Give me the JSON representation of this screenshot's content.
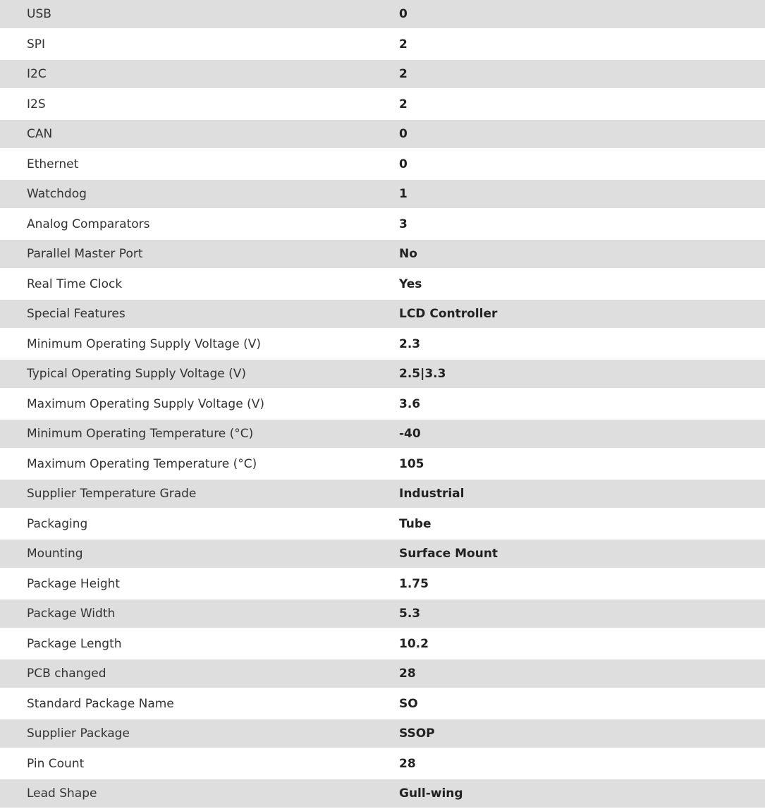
{
  "specs": [
    {
      "label": "USB",
      "value": "0"
    },
    {
      "label": "SPI",
      "value": "2"
    },
    {
      "label": "I2C",
      "value": "2"
    },
    {
      "label": "I2S",
      "value": "2"
    },
    {
      "label": "CAN",
      "value": "0"
    },
    {
      "label": "Ethernet",
      "value": "0"
    },
    {
      "label": "Watchdog",
      "value": "1"
    },
    {
      "label": "Analog Comparators",
      "value": "3"
    },
    {
      "label": "Parallel Master Port",
      "value": "No"
    },
    {
      "label": "Real Time Clock",
      "value": "Yes"
    },
    {
      "label": "Special Features",
      "value": "LCD Controller"
    },
    {
      "label": "Minimum Operating Supply Voltage (V)",
      "value": "2.3"
    },
    {
      "label": "Typical Operating Supply Voltage (V)",
      "value": "2.5|3.3"
    },
    {
      "label": "Maximum Operating Supply Voltage (V)",
      "value": "3.6"
    },
    {
      "label": "Minimum Operating Temperature (°C)",
      "value": "-40"
    },
    {
      "label": "Maximum Operating Temperature (°C)",
      "value": "105"
    },
    {
      "label": "Supplier Temperature Grade",
      "value": "Industrial"
    },
    {
      "label": "Packaging",
      "value": "Tube"
    },
    {
      "label": "Mounting",
      "value": "Surface Mount"
    },
    {
      "label": "Package Height",
      "value": "1.75"
    },
    {
      "label": "Package Width",
      "value": "5.3"
    },
    {
      "label": "Package Length",
      "value": "10.2"
    },
    {
      "label": "PCB changed",
      "value": "28"
    },
    {
      "label": "Standard Package Name",
      "value": "SO"
    },
    {
      "label": "Supplier Package",
      "value": "SSOP"
    },
    {
      "label": "Pin Count",
      "value": "28"
    },
    {
      "label": "Lead Shape",
      "value": "Gull-wing"
    }
  ]
}
